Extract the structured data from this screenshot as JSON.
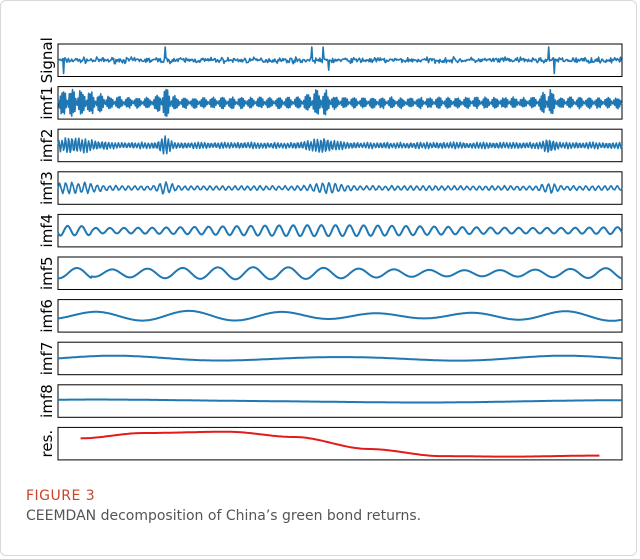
{
  "chart_data": {
    "type": "line",
    "layout": "stacked-panels",
    "series": [
      {
        "name": "Signal",
        "color": "#1f77b4",
        "kind": "noise",
        "amplitude": 0.6,
        "spikes": [
          [
            0.01,
            -1.9
          ],
          [
            0.19,
            2.4
          ],
          [
            0.45,
            1.6
          ],
          [
            0.47,
            1.4
          ],
          [
            0.48,
            -0.9
          ],
          [
            0.87,
            1.9
          ],
          [
            0.88,
            -1.3
          ]
        ]
      },
      {
        "name": "imf1",
        "color": "#1f77b4",
        "kind": "burst",
        "amplitude": 0.55,
        "cycles": 320,
        "bursts": [
          [
            0.03,
            0.05,
            1.6
          ],
          [
            0.19,
            0.012,
            2.2
          ],
          [
            0.465,
            0.02,
            1.6
          ],
          [
            0.87,
            0.012,
            1.6
          ]
        ]
      },
      {
        "name": "imf2",
        "color": "#1f77b4",
        "kind": "burst",
        "amplitude": 0.3,
        "cycles": 170,
        "bursts": [
          [
            0.03,
            0.04,
            1.8
          ],
          [
            0.19,
            0.012,
            2.0
          ],
          [
            0.47,
            0.025,
            1.6
          ],
          [
            0.87,
            0.012,
            1.4
          ]
        ]
      },
      {
        "name": "imf3",
        "color": "#1f77b4",
        "kind": "burst",
        "amplitude": 0.22,
        "cycles": 90,
        "bursts": [
          [
            0.03,
            0.04,
            1.8
          ],
          [
            0.19,
            0.015,
            1.6
          ],
          [
            0.48,
            0.03,
            1.5
          ],
          [
            0.87,
            0.015,
            1.4
          ]
        ]
      },
      {
        "name": "imf4",
        "color": "#1f77b4",
        "kind": "sine",
        "amplitude": 0.5,
        "cycles": 40
      },
      {
        "name": "imf5",
        "color": "#1f77b4",
        "kind": "sine",
        "amplitude": 0.55,
        "cycles": 16
      },
      {
        "name": "imf6",
        "color": "#1f77b4",
        "kind": "sine",
        "amplitude": 0.45,
        "cycles": 6
      },
      {
        "name": "imf7",
        "color": "#1f77b4",
        "kind": "sine",
        "amplitude": 0.25,
        "cycles": 2.5
      },
      {
        "name": "imf8",
        "color": "#1f77b4",
        "kind": "sine",
        "amplitude": 0.15,
        "cycles": 1
      },
      {
        "name": "res.",
        "color": "#e41a1c",
        "kind": "trend",
        "x_range": [
          0.04,
          0.96
        ],
        "points": [
          [
            0.04,
            0.3
          ],
          [
            0.15,
            0.1
          ],
          [
            0.3,
            0.05
          ],
          [
            0.42,
            0.25
          ],
          [
            0.55,
            0.7
          ],
          [
            0.68,
            0.97
          ],
          [
            0.8,
            0.99
          ],
          [
            0.96,
            0.95
          ]
        ]
      }
    ],
    "xlabel": "",
    "ylabel": "",
    "grid": false,
    "ticks": "none",
    "legend": "none"
  },
  "caption": {
    "label": "FIGURE 3",
    "text": "CEEMDAN decomposition of China’s green bond returns."
  }
}
